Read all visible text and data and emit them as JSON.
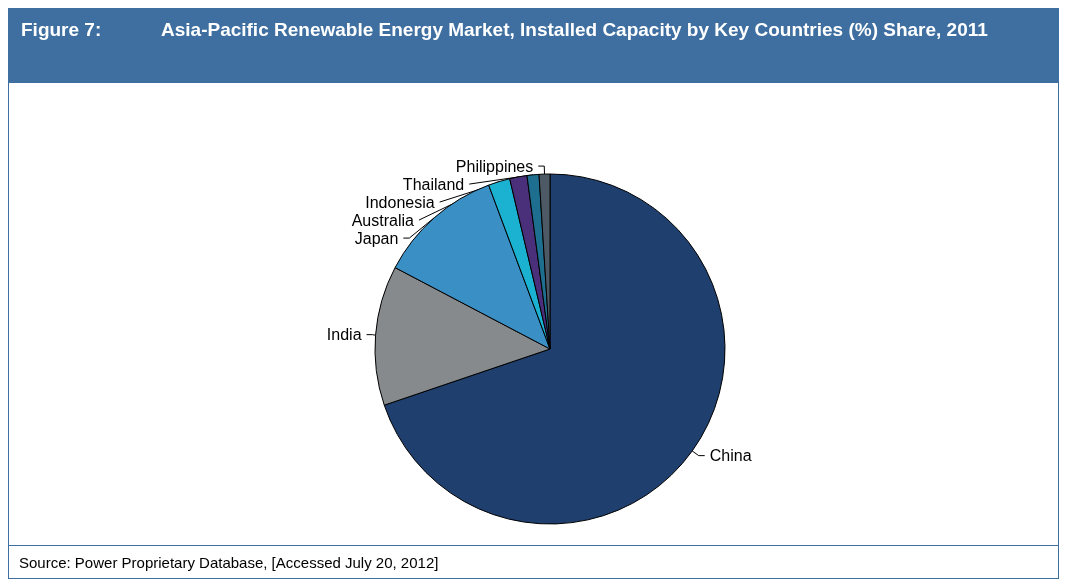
{
  "chart_data": {
    "type": "pie",
    "title": "Asia-Pacific Renewable Energy Market, Installed Capacity by Key Countries (%) Share, 2011",
    "categories": [
      "China",
      "India",
      "Japan",
      "Australia",
      "Indonesia",
      "Thailand",
      "Philippines"
    ],
    "values": [
      69.8,
      12.9,
      11.6,
      2.0,
      1.6,
      1.1,
      1.0
    ],
    "colors": [
      "#1f3f6e",
      "#878a8c",
      "#3a8fc4",
      "#1ab2d0",
      "#4a2f7a",
      "#1e6f8f",
      "#4d5a66"
    ],
    "legend": false,
    "annotations": [
      "Figure 7:",
      "Source: Power Proprietary Database, [Accessed July 20, 2012]"
    ]
  }
}
